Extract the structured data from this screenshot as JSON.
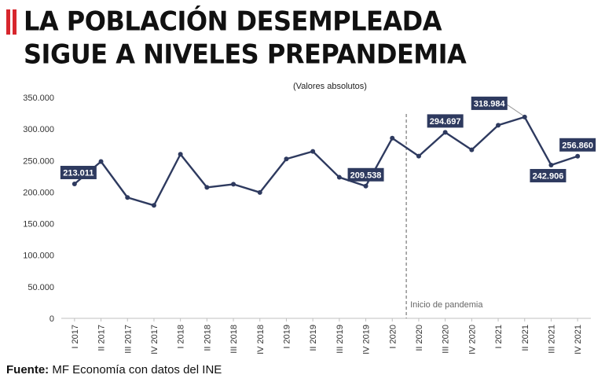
{
  "title": {
    "line1": "LA POBLACIÓN DESEMPLEADA",
    "line2": "SIGUE A NIVELES PREPANDEMIA"
  },
  "source": {
    "label": "Fuente:",
    "text": "MF Economía con datos del INE"
  },
  "colors": {
    "line": "#2e3a5f",
    "accent": "#d7262d",
    "label_bg": "#2e3a5f",
    "label_text": "#ffffff",
    "divider": "#777777"
  },
  "chart_data": {
    "type": "line",
    "subtitle": "(Valores absolutos)",
    "xlabel": "",
    "ylabel": "",
    "ylim": [
      0,
      350000
    ],
    "yticks": [
      0,
      50000,
      100000,
      150000,
      200000,
      250000,
      300000,
      350000
    ],
    "ytick_labels": [
      "0",
      "50.000",
      "100.000",
      "150.000",
      "200.000",
      "250.000",
      "300.000",
      "350.000"
    ],
    "grid": false,
    "categories": [
      "I 2017",
      "II 2017",
      "III 2017",
      "IV 2017",
      "I 2018",
      "II 2018",
      "III 2018",
      "IV 2018",
      "I 2019",
      "II 2019",
      "III 2019",
      "IV 2019",
      "I 2020",
      "II 2020",
      "III 2020",
      "IV 2020",
      "I 2021",
      "II 2021",
      "III 2021",
      "IV 2021"
    ],
    "series": [
      {
        "name": "Población desempleada",
        "values": [
          213011,
          248500,
          191500,
          179000,
          260000,
          207500,
          212500,
          199500,
          252500,
          264500,
          223500,
          209538,
          285500,
          257000,
          294697,
          267000,
          306000,
          318984,
          242906,
          256860
        ]
      }
    ],
    "data_labels": [
      {
        "index": 0,
        "text": "213.011",
        "placement": "above"
      },
      {
        "index": 11,
        "text": "209.538",
        "placement": "above"
      },
      {
        "index": 14,
        "text": "294.697",
        "placement": "above"
      },
      {
        "index": 17,
        "text": "318.984",
        "placement": "above-left"
      },
      {
        "index": 18,
        "text": "242.906",
        "placement": "below"
      },
      {
        "index": 19,
        "text": "256.860",
        "placement": "above"
      }
    ],
    "annotations": [
      {
        "type": "vertical-dashed-line",
        "between": [
          "I 2020",
          "II 2020"
        ],
        "text": "Inicio de pandemia"
      }
    ]
  }
}
